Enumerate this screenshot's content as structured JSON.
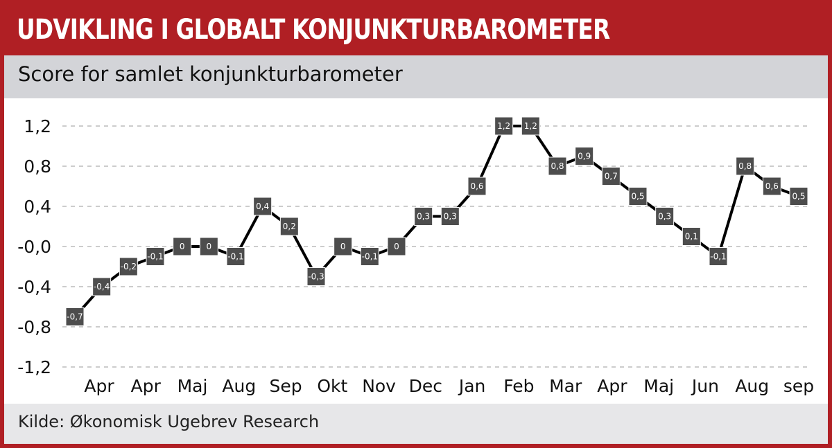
{
  "header": {
    "title": "UDVIKLING I GLOBALT KONJUNKTURBAROMETER",
    "subtitle": "Score for samlet konjunkturbarometer"
  },
  "footer": {
    "source": "Kilde: Økonomisk Ugebrev Research"
  },
  "colors": {
    "brand_red": "#b01f24",
    "subtitle_bg": "#d3d4d8",
    "source_bg": "#e7e7e9",
    "line": "#000000",
    "marker": "#4d4d4d",
    "marker_text": "#ffffff",
    "gridline": "#9a9a9a"
  },
  "chart_data": {
    "type": "line",
    "title": "Score for samlet konjunkturbarometer",
    "ylim": [
      -1.2,
      1.2
    ],
    "y_ticks": [
      1.2,
      0.8,
      0.4,
      0,
      -0.4,
      -0.8,
      -1.2
    ],
    "y_tick_labels": [
      "1,2",
      "0,8",
      "0,4",
      "-0,0",
      "-0,4",
      "-0,8",
      "-1,2"
    ],
    "x_tick_labels": [
      "Apr",
      "Apr",
      "Maj",
      "Aug",
      "Sep",
      "Okt",
      "Nov",
      "Dec",
      "Jan",
      "Feb",
      "Mar",
      "Apr",
      "Maj",
      "Jun",
      "Aug",
      "sep"
    ],
    "grid": true,
    "grid_style": "dashed horizontal",
    "legend": "none",
    "series": [
      {
        "values": [
          -0.7,
          -0.4,
          -0.2,
          -0.1,
          0,
          0,
          -0.1,
          0.4,
          0.2,
          -0.3,
          0,
          -0.1,
          0,
          0.3,
          0.3,
          0.6,
          1.2,
          1.2,
          0.8,
          0.9,
          0.7,
          0.5,
          0.3,
          0.1,
          -0.1,
          0.8,
          0.6,
          0.5
        ],
        "labels": [
          "-0,7",
          "-0,4",
          "-0,2",
          "-0,1",
          "0",
          "0",
          "-0,1",
          "0,4",
          "0,2",
          "-0,3",
          "0",
          "-0,1",
          "0",
          "0,3",
          "0,3",
          "0,6",
          "1,2",
          "1,2",
          "0,8",
          "0,9",
          "0,7",
          "0,5",
          "0,3",
          "0,1",
          "-0,1",
          "0,8",
          "0,6",
          "0,5"
        ]
      }
    ]
  }
}
